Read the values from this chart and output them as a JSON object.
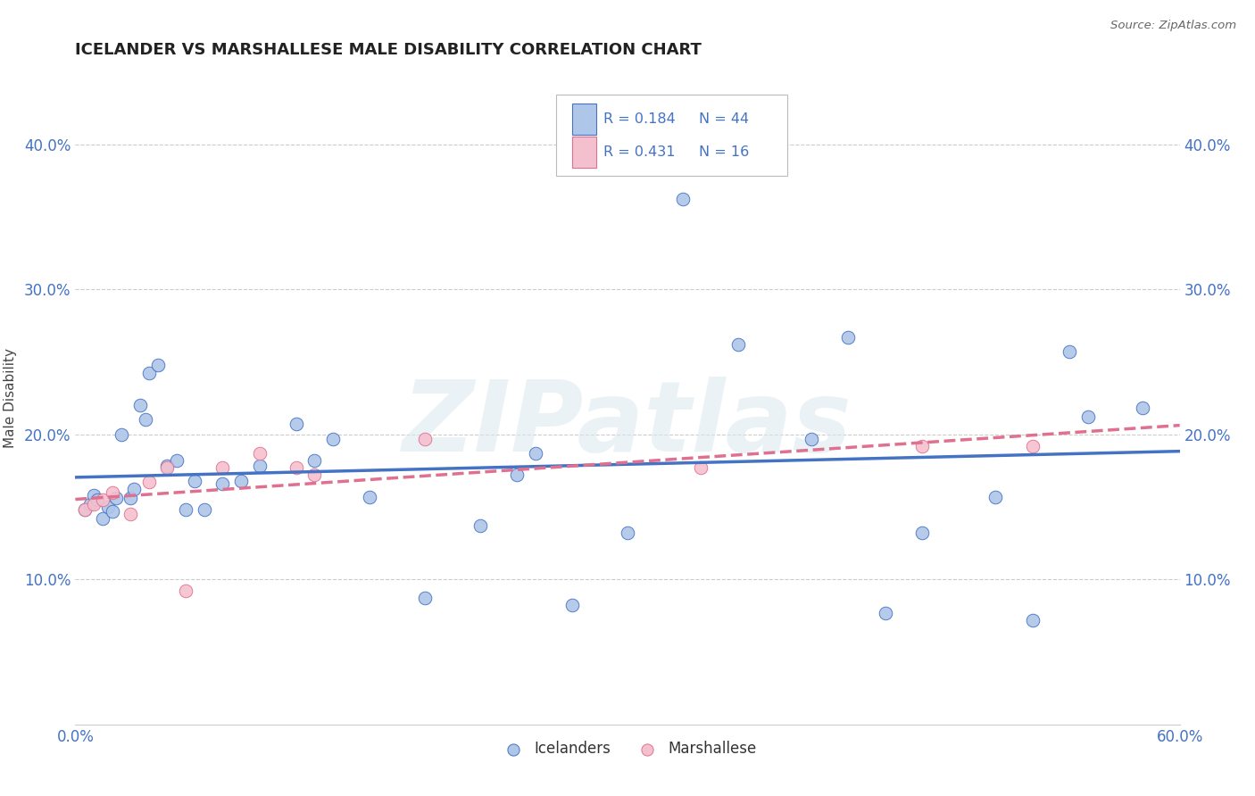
{
  "title": "ICELANDER VS MARSHALLESE MALE DISABILITY CORRELATION CHART",
  "source_text": "Source: ZipAtlas.com",
  "ylabel": "Male Disability",
  "xlim": [
    0.0,
    0.6
  ],
  "ylim": [
    0.0,
    0.45
  ],
  "yticks": [
    0.1,
    0.2,
    0.3,
    0.4
  ],
  "ytick_labels": [
    "10.0%",
    "20.0%",
    "30.0%",
    "40.0%"
  ],
  "icelanders_x": [
    0.005,
    0.008,
    0.01,
    0.012,
    0.015,
    0.018,
    0.02,
    0.022,
    0.025,
    0.03,
    0.032,
    0.035,
    0.038,
    0.04,
    0.045,
    0.05,
    0.055,
    0.06,
    0.065,
    0.07,
    0.08,
    0.09,
    0.1,
    0.12,
    0.13,
    0.14,
    0.16,
    0.19,
    0.22,
    0.24,
    0.25,
    0.27,
    0.3,
    0.33,
    0.36,
    0.4,
    0.42,
    0.44,
    0.46,
    0.5,
    0.52,
    0.54,
    0.55,
    0.58
  ],
  "icelanders_y": [
    0.148,
    0.152,
    0.158,
    0.155,
    0.142,
    0.15,
    0.147,
    0.156,
    0.2,
    0.156,
    0.162,
    0.22,
    0.21,
    0.242,
    0.248,
    0.178,
    0.182,
    0.148,
    0.168,
    0.148,
    0.166,
    0.168,
    0.178,
    0.207,
    0.182,
    0.197,
    0.157,
    0.087,
    0.137,
    0.172,
    0.187,
    0.082,
    0.132,
    0.362,
    0.262,
    0.197,
    0.267,
    0.077,
    0.132,
    0.157,
    0.072,
    0.257,
    0.212,
    0.218
  ],
  "marshallese_x": [
    0.005,
    0.01,
    0.015,
    0.02,
    0.03,
    0.04,
    0.05,
    0.06,
    0.08,
    0.1,
    0.12,
    0.13,
    0.19,
    0.34,
    0.46,
    0.52
  ],
  "marshallese_y": [
    0.148,
    0.152,
    0.155,
    0.16,
    0.145,
    0.167,
    0.177,
    0.092,
    0.177,
    0.187,
    0.177,
    0.172,
    0.197,
    0.177,
    0.192,
    0.192
  ],
  "icelander_color": "#aec6e8",
  "marshallese_color": "#f5c0ce",
  "icelander_line_color": "#4472c4",
  "marshallese_line_color": "#e07090",
  "R_icelander": "0.184",
  "N_icelander": "44",
  "R_marshallese": "0.431",
  "N_marshallese": "16",
  "watermark": "ZIPatlas",
  "background_color": "#ffffff",
  "grid_color": "#cccccc"
}
